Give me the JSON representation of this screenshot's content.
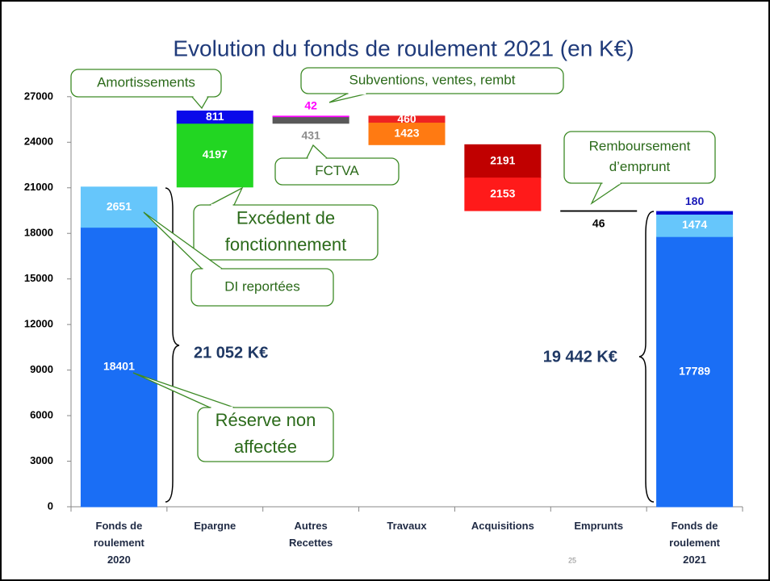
{
  "chart_data": {
    "type": "waterfall",
    "title": "Evolution du fonds de roulement 2021 (en K€)",
    "categories": [
      [
        "Fonds de",
        "roulement",
        "2020"
      ],
      [
        "Epargne"
      ],
      [
        "Autres",
        "Recettes"
      ],
      [
        "Travaux"
      ],
      [
        "Acquisitions"
      ],
      [
        "Emprunts"
      ],
      [
        "Fonds de",
        "roulement",
        "2021"
      ]
    ],
    "bars": [
      {
        "kind": "total",
        "segments": [
          {
            "value": 18401,
            "color": "#1a6ef5",
            "label_color": "#ffffff",
            "label_position": "inside"
          },
          {
            "value": 2651,
            "color": "#66c6fb",
            "label_color": "#ffffff",
            "label_position": "inside"
          }
        ]
      },
      {
        "kind": "increase",
        "segments": [
          {
            "value": 4197,
            "color": "#22d622",
            "label_color": "#ffffff",
            "label_position": "inside"
          },
          {
            "value": 811,
            "color": "#0a0aea",
            "label_color": "#ffffff",
            "label_position": "inside",
            "in_running_total": false
          }
        ]
      },
      {
        "kind": "increase",
        "segments": [
          {
            "value": 431,
            "color": "#595959",
            "label_color": "#8c8c8c",
            "label_position": "below"
          },
          {
            "value": 42,
            "color": "#ff00ff",
            "label_color": "#ff00ff",
            "label_position": "above"
          }
        ]
      },
      {
        "kind": "decrease",
        "segments": [
          {
            "value": 460,
            "color": "#ee2222",
            "label_color": "#ffffff",
            "label_position": "inside"
          },
          {
            "value": 1423,
            "color": "#ff7a12",
            "label_color": "#ffffff",
            "label_position": "inside"
          }
        ]
      },
      {
        "kind": "decrease",
        "segments": [
          {
            "value": 2191,
            "color": "#c00000",
            "label_color": "#ffffff",
            "label_position": "inside"
          },
          {
            "value": 2153,
            "color": "#ff1a1a",
            "label_color": "#ffffff",
            "label_position": "inside"
          }
        ]
      },
      {
        "kind": "decrease",
        "segments": [
          {
            "value": 46,
            "color": "#000000",
            "label_color": "#000000",
            "label_position": "below"
          }
        ]
      },
      {
        "kind": "total",
        "segments": [
          {
            "value": 17789,
            "color": "#1a6ef5",
            "label_color": "#ffffff",
            "label_position": "inside"
          },
          {
            "value": 1474,
            "color": "#66c6fb",
            "label_color": "#ffffff",
            "label_position": "inside"
          },
          {
            "value": 180,
            "color": "#0a0ad0",
            "label_color": "#1a1ab8",
            "label_position": "above"
          }
        ]
      }
    ],
    "ylim": [
      0,
      28000
    ],
    "yticks": [
      0,
      3000,
      6000,
      9000,
      12000,
      15000,
      18000,
      21000,
      24000,
      27000
    ],
    "annotations": [
      {
        "lines": [
          "Amortissements"
        ]
      },
      {
        "lines": [
          "Subventions, ventes, rembt"
        ]
      },
      {
        "lines": [
          "FCTVA"
        ]
      },
      {
        "lines": [
          "Remboursement",
          "d’emprunt"
        ]
      },
      {
        "lines": [
          "Excédent de",
          "fonctionnement"
        ]
      },
      {
        "lines": [
          "DI reportées"
        ]
      },
      {
        "lines": [
          "Réserve non",
          "affectée"
        ]
      },
      {
        "lines": [
          "21 052 K€"
        ]
      },
      {
        "lines": [
          "19 442 K€"
        ]
      }
    ],
    "page_number": 25
  }
}
